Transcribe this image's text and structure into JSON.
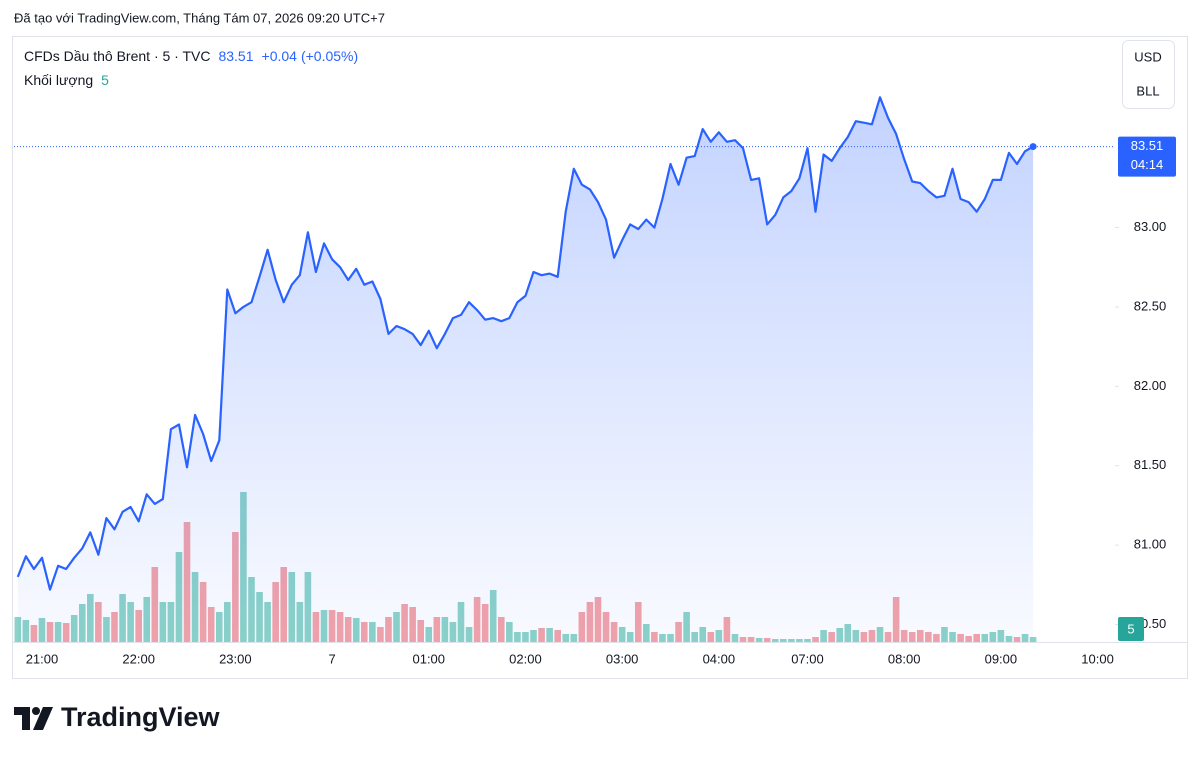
{
  "chart_data": {
    "type": "area",
    "title": "Đã tạo với TradingView.com, Tháng Tám 07, 2026 09:20 UTC+7",
    "brand": "TradingView",
    "currency": "USD",
    "unit": "BLL",
    "countdown": "04:14",
    "change": "+0.04",
    "change_percent": "(+0.05%)",
    "categories": [
      null,
      null,
      null,
      "21:00",
      null,
      null,
      null,
      null,
      null,
      null,
      null,
      null,
      null,
      null,
      null,
      "22:00",
      null,
      null,
      null,
      null,
      null,
      null,
      null,
      null,
      null,
      null,
      null,
      "23:00",
      null,
      null,
      null,
      null,
      null,
      null,
      null,
      null,
      null,
      null,
      null,
      "7",
      null,
      null,
      null,
      null,
      null,
      null,
      null,
      null,
      null,
      null,
      null,
      "01:00",
      null,
      null,
      null,
      null,
      null,
      null,
      null,
      null,
      null,
      null,
      null,
      "02:00",
      null,
      null,
      null,
      null,
      null,
      null,
      null,
      null,
      null,
      null,
      null,
      "03:00",
      null,
      null,
      null,
      null,
      null,
      null,
      null,
      null,
      null,
      null,
      null,
      "04:00",
      null,
      null,
      null,
      null,
      null,
      null,
      null,
      null,
      null,
      null,
      "07:00",
      null,
      null,
      null,
      null,
      null,
      null,
      null,
      null,
      null,
      null,
      null,
      "08:00",
      null,
      null,
      null,
      null,
      null,
      null,
      null,
      null,
      null,
      null,
      null,
      "09:00",
      null,
      null,
      null,
      null,
      null,
      null,
      null,
      null,
      null,
      null,
      null,
      "10:00"
    ],
    "series": [
      {
        "name": "CFDs Dầu thô Brent · 5 · TVC",
        "color": "#2962ff",
        "values": [
          80.8,
          80.93,
          80.85,
          80.92,
          80.72,
          80.87,
          80.85,
          80.92,
          80.98,
          81.08,
          80.94,
          81.17,
          81.1,
          81.21,
          81.24,
          81.15,
          81.32,
          81.26,
          81.29,
          81.73,
          81.76,
          81.49,
          81.82,
          81.7,
          81.53,
          81.66,
          82.61,
          82.46,
          82.5,
          82.53,
          82.69,
          82.86,
          82.67,
          82.53,
          82.64,
          82.7,
          82.97,
          82.72,
          82.9,
          82.8,
          82.75,
          82.67,
          82.74,
          82.64,
          82.66,
          82.55,
          82.33,
          82.38,
          82.36,
          82.33,
          82.26,
          82.35,
          82.24,
          82.33,
          82.43,
          82.45,
          82.53,
          82.48,
          82.42,
          82.43,
          82.41,
          82.43,
          82.53,
          82.57,
          82.72,
          82.7,
          82.71,
          82.69,
          83.1,
          83.37,
          83.27,
          83.24,
          83.16,
          83.05,
          82.81,
          82.92,
          83.02,
          82.99,
          83.05,
          83.0,
          83.18,
          83.4,
          83.27,
          83.44,
          83.45,
          83.62,
          83.54,
          83.6,
          83.54,
          83.55,
          83.5,
          83.3,
          83.31,
          83.02,
          83.08,
          83.19,
          83.23,
          83.31,
          83.5,
          83.1,
          83.46,
          83.42,
          83.5,
          83.57,
          83.67,
          83.66,
          83.65,
          83.82,
          83.69,
          83.59,
          83.43,
          83.29,
          83.28,
          83.23,
          83.19,
          83.2,
          83.37,
          83.18,
          83.16,
          83.1,
          83.18,
          83.3,
          83.3,
          83.47,
          83.4,
          83.48,
          83.51,
          null,
          null,
          null,
          null,
          null,
          null,
          null,
          null
        ]
      },
      {
        "name": "Khối lượng",
        "axis": "y2",
        "up_color": "#8cd3c8",
        "down_color": "#f4a3a8",
        "values": [
          25,
          22,
          17,
          24,
          20,
          20,
          19,
          27,
          38,
          48,
          40,
          25,
          30,
          48,
          40,
          32,
          45,
          75,
          40,
          40,
          90,
          120,
          70,
          60,
          35,
          30,
          40,
          110,
          150,
          65,
          50,
          40,
          60,
          75,
          70,
          40,
          70,
          30,
          32,
          32,
          30,
          25,
          24,
          20,
          20,
          15,
          25,
          30,
          38,
          35,
          22,
          15,
          25,
          25,
          20,
          40,
          15,
          45,
          38,
          52,
          25,
          20,
          10,
          10,
          12,
          14,
          14,
          12,
          8,
          8,
          30,
          40,
          45,
          30,
          20,
          15,
          10,
          40,
          18,
          10,
          8,
          8,
          20,
          30,
          10,
          15,
          10,
          12,
          25,
          8,
          5,
          5,
          4,
          4,
          3,
          3,
          3,
          3,
          3,
          5,
          12,
          10,
          14,
          18,
          12,
          10,
          12,
          15,
          10,
          45,
          12,
          10,
          12,
          10,
          8,
          15,
          10,
          8,
          6,
          8,
          8,
          10,
          12,
          6,
          5,
          8,
          5,
          null,
          null,
          null,
          null,
          null,
          null,
          null,
          null
        ]
      }
    ],
    "ylim": [
      80.39,
      84.2
    ],
    "yticks": [
      {
        "value": 80.5,
        "label": "80.50"
      },
      {
        "value": 81,
        "label": "81.00"
      },
      {
        "value": 81.5,
        "label": "81.50"
      },
      {
        "value": 82,
        "label": "82.00"
      },
      {
        "value": 82.5,
        "label": "82.50"
      },
      {
        "value": 83,
        "label": "83.00"
      }
    ],
    "y2lim": [
      0,
      605
    ],
    "grid": false
  }
}
